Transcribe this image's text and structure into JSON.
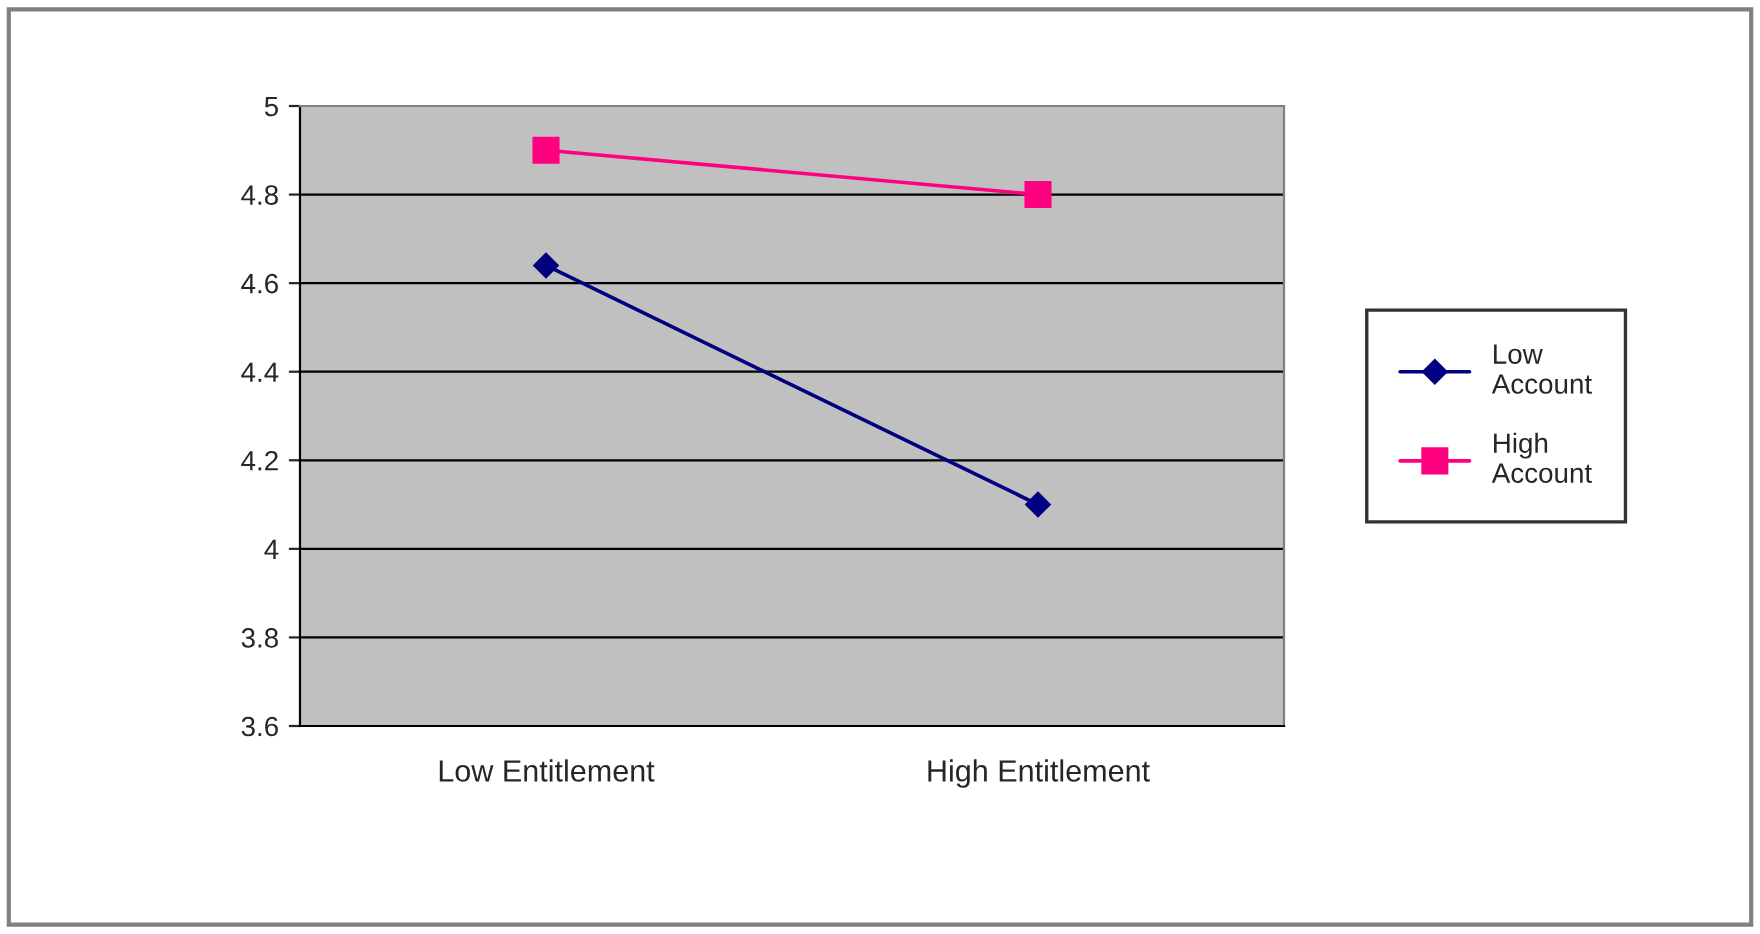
{
  "chart_data": {
    "type": "line",
    "categories": [
      "Low Entitlement",
      "High Entitlement"
    ],
    "series": [
      {
        "name": "Low\nAccount",
        "color": "#000080",
        "values": [
          4.64,
          4.1
        ],
        "marker": "diamond"
      },
      {
        "name": "High\nAccount",
        "color": "#ff0080",
        "values": [
          4.9,
          4.8
        ],
        "marker": "square"
      }
    ],
    "ylim": [
      3.6,
      5
    ],
    "yticks": [
      3.6,
      3.8,
      4,
      4.2,
      4.4,
      4.6,
      4.8,
      5
    ],
    "grid": "y",
    "legend": "right",
    "line_style": "solid"
  }
}
